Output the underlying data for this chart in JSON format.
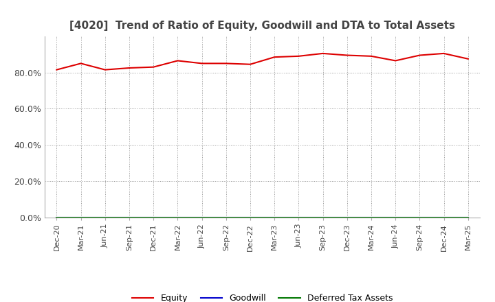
{
  "title": "[4020]  Trend of Ratio of Equity, Goodwill and DTA to Total Assets",
  "title_fontsize": 11,
  "title_color": "#444444",
  "background_color": "#ffffff",
  "plot_background_color": "#ffffff",
  "grid_color": "#999999",
  "x_labels": [
    "Dec-20",
    "Mar-21",
    "Jun-21",
    "Sep-21",
    "Dec-21",
    "Mar-22",
    "Jun-22",
    "Sep-22",
    "Dec-22",
    "Mar-23",
    "Jun-23",
    "Sep-23",
    "Dec-23",
    "Mar-24",
    "Jun-24",
    "Sep-24",
    "Dec-24",
    "Mar-25"
  ],
  "equity_values": [
    81.5,
    85.0,
    81.5,
    82.5,
    83.0,
    86.5,
    85.0,
    85.0,
    84.5,
    88.5,
    89.0,
    90.5,
    89.5,
    89.0,
    86.5,
    89.5,
    90.5,
    87.5
  ],
  "goodwill_values": [
    0.0,
    0.0,
    0.0,
    0.0,
    0.0,
    0.0,
    0.0,
    0.0,
    0.0,
    0.0,
    0.0,
    0.0,
    0.0,
    0.0,
    0.0,
    0.0,
    0.0,
    0.0
  ],
  "dta_values": [
    0.0,
    0.0,
    0.0,
    0.0,
    0.0,
    0.0,
    0.0,
    0.0,
    0.0,
    0.0,
    0.0,
    0.0,
    0.0,
    0.0,
    0.0,
    0.0,
    0.0,
    0.0
  ],
  "equity_color": "#dd0000",
  "goodwill_color": "#0000cc",
  "dta_color": "#007700",
  "ylim": [
    0,
    100
  ],
  "yticks": [
    0,
    20,
    40,
    60,
    80
  ],
  "ytick_labels": [
    "0.0%",
    "20.0%",
    "40.0%",
    "60.0%",
    "80.0%"
  ],
  "legend_labels": [
    "Equity",
    "Goodwill",
    "Deferred Tax Assets"
  ],
  "line_width": 1.5
}
